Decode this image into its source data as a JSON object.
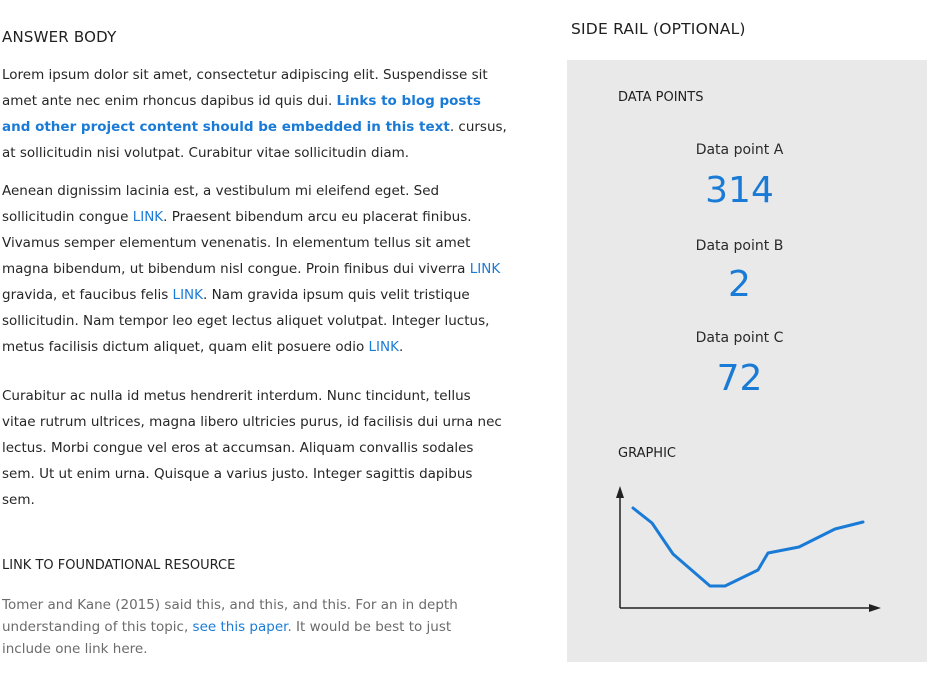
{
  "answer": {
    "heading": "ANSWER BODY",
    "p1": {
      "text_a": "Lorem ipsum dolor sit amet, consectetur adipiscing elit. Suspendisse sit amet ante nec enim rhoncus dapibus id quis dui. ",
      "link": "Links to blog posts and other project content should be embedded in this text",
      "text_b": ". cursus, at sollicitudin nisi volutpat. Curabitur vitae sollicitudin diam."
    },
    "p2": {
      "t1": "Aenean dignissim lacinia est, a vestibulum mi eleifend eget. Sed sollicitudin congue ",
      "l1": "LINK",
      "t2": ". Praesent bibendum arcu eu placerat finibus. Vivamus semper elementum venenatis. In elementum tellus sit amet magna bibendum, ut bibendum nisl congue. Proin finibus dui viverra ",
      "l2": "LINK",
      "t3": " gravida, et faucibus felis ",
      "l3": "LINK",
      "t4": ". Nam gravida ipsum quis velit tristique sollicitudin. Nam tempor leo eget lectus aliquet volutpat. Integer luctus, metus facilisis dictum aliquet, quam elit posuere odio ",
      "l4": "LINK",
      "t5": "."
    },
    "p3": "Curabitur ac nulla id metus hendrerit interdum. Nunc tincidunt, tellus vitae rutrum ultrices, magna libero ultricies purus, id facilisis dui urna nec lectus. Morbi congue vel eros at accumsan. Aliquam convallis sodales sem. Ut ut enim urna. Quisque a varius justo. Integer sagittis dapibus sem."
  },
  "foundational": {
    "heading": "LINK TO FOUNDATIONAL RESOURCE",
    "text_a": "Tomer and Kane (2015) said this, and this, and this. For an in depth understanding of this topic, ",
    "link": "see this paper",
    "text_b": ". It would be best to just include one link here."
  },
  "side_rail": {
    "title": "SIDE RAIL (OPTIONAL)",
    "data_points_heading": "DATA POINTS",
    "points": [
      {
        "label": "Data point A",
        "value": "314"
      },
      {
        "label": "Data point B",
        "value": "2"
      },
      {
        "label": "Data point C",
        "value": "72"
      }
    ],
    "graphic_heading": "GRAPHIC"
  },
  "colors": {
    "link": "#1a7bd6",
    "rail_bg": "#e9e9e9",
    "graphic_line": "#1a7bd6"
  }
}
